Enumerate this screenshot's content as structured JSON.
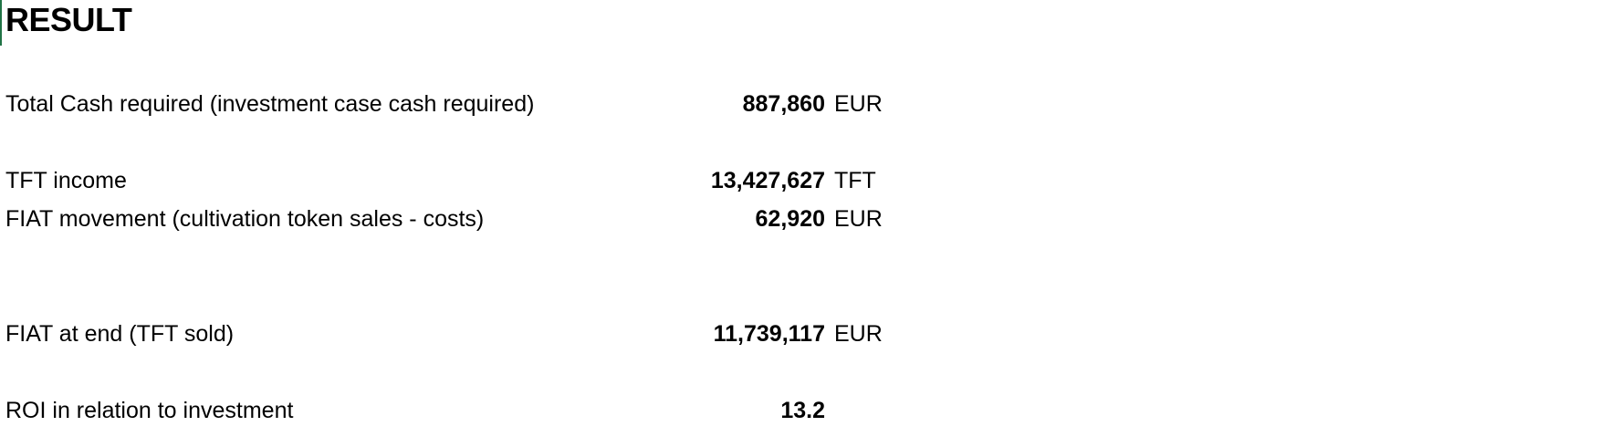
{
  "title": "RESULT",
  "rows": [
    {
      "label": "Total Cash required (investment case cash required)",
      "value": "887,860",
      "unit": "EUR"
    },
    {
      "label": "TFT income",
      "value": "13,427,627",
      "unit": "TFT"
    },
    {
      "label": "FIAT movement (cultivation token sales - costs)",
      "value": "62,920",
      "unit": "EUR"
    },
    {
      "label": "FIAT at end (TFT sold)",
      "value": "11,739,117",
      "unit": "EUR"
    },
    {
      "label": "ROI in relation to investment",
      "value": "13.2",
      "unit": ""
    }
  ],
  "colors": {
    "text": "#000000",
    "background": "#ffffff",
    "cell_cursor": "#217346"
  }
}
